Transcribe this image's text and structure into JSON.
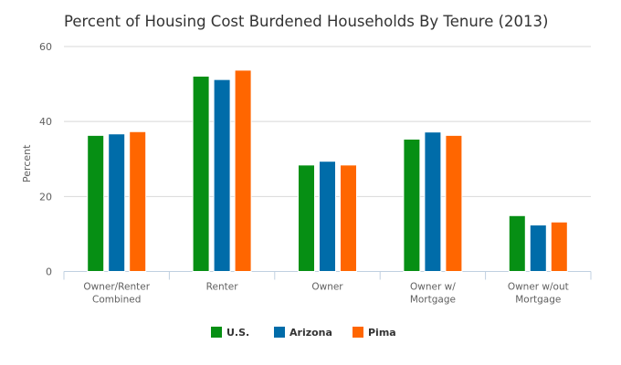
{
  "chart_data": {
    "type": "bar",
    "title": "Percent of Housing Cost Burdened Households By Tenure (2013)",
    "xlabel": "",
    "ylabel": "Percent",
    "ylim": [
      0,
      60
    ],
    "yticks": [
      0,
      20,
      40,
      60
    ],
    "grid": true,
    "legend_position": "bottom",
    "categories": [
      [
        "Owner/Renter",
        "Combined"
      ],
      [
        "Renter"
      ],
      [
        "Owner"
      ],
      [
        "Owner w/",
        "Mortgage"
      ],
      [
        "Owner w/out",
        "Mortgage"
      ]
    ],
    "series": [
      {
        "name": "U.S.",
        "color": "#068f14",
        "values": [
          36.3,
          52.1,
          28.4,
          35.3,
          14.9
        ]
      },
      {
        "name": "Arizona",
        "color": "#006ca9",
        "values": [
          36.7,
          51.2,
          29.4,
          37.2,
          12.4
        ]
      },
      {
        "name": "Pima",
        "color": "#ff6600",
        "values": [
          37.3,
          53.7,
          28.4,
          36.3,
          13.2
        ]
      }
    ]
  }
}
